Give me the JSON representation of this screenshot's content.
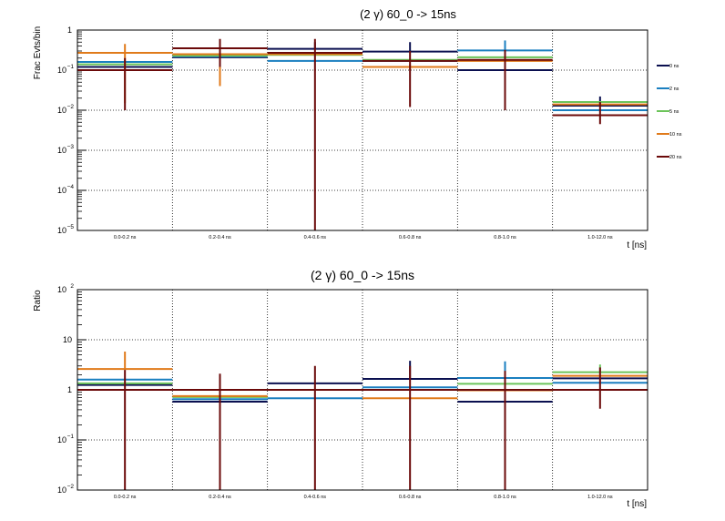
{
  "series_colors": {
    "0 ns": "#0b1050",
    "2 ns": "#1a7fc0",
    "5 ns": "#6cc45a",
    "10 ns": "#e07a1a",
    "20 ns": "#6b0a0a"
  },
  "chart_data": [
    {
      "type": "bar",
      "title": "(2 γ) 60_0 -> 15ns",
      "xlabel": "t [ns]",
      "ylabel": "Frac Evts/bin",
      "yscale": "log",
      "ylim": [
        1e-05,
        1
      ],
      "y_ticks": [
        {
          "value": 1,
          "base": "1",
          "exp": ""
        },
        {
          "value": 0.1,
          "base": "10",
          "exp": "−1"
        },
        {
          "value": 0.01,
          "base": "10",
          "exp": "−2"
        },
        {
          "value": 0.001,
          "base": "10",
          "exp": "−3"
        },
        {
          "value": 0.0001,
          "base": "10",
          "exp": "−4"
        },
        {
          "value": 1e-05,
          "base": "10",
          "exp": "−5"
        }
      ],
      "categories": [
        "0.0-0.2 ns",
        "0.2-0.4 ns",
        "0.4-0.6 ns",
        "0.6-0.8 ns",
        "0.8-1.0 ns",
        "1.0-12.0 ns"
      ],
      "legend": [
        "0 ns",
        "2 ns",
        "5 ns",
        "10 ns",
        "20 ns"
      ],
      "series": [
        {
          "name": "0 ns",
          "values": [
            0.12,
            0.21,
            0.34,
            0.29,
            0.1,
            0.013
          ],
          "err_hi": [
            null,
            null,
            0.5,
            0.5,
            null,
            0.022
          ],
          "err_lo": [
            null,
            null,
            null,
            null,
            null,
            null
          ]
        },
        {
          "name": "2 ns",
          "values": [
            0.16,
            0.22,
            0.17,
            0.17,
            0.31,
            0.01
          ],
          "err_hi": [
            null,
            null,
            null,
            null,
            0.55,
            null
          ],
          "err_lo": [
            null,
            null,
            null,
            null,
            null,
            null
          ]
        },
        {
          "name": "5 ns",
          "values": [
            0.14,
            0.23,
            0.24,
            0.18,
            0.21,
            0.016
          ],
          "err_hi": [
            null,
            null,
            null,
            null,
            null,
            null
          ],
          "err_lo": [
            null,
            null,
            null,
            null,
            null,
            null
          ]
        },
        {
          "name": "10 ns",
          "values": [
            0.27,
            0.25,
            0.25,
            0.12,
            0.17,
            0.014
          ],
          "err_hi": [
            0.45,
            0.28,
            null,
            0.14,
            null,
            null
          ],
          "err_lo": [
            0.015,
            0.04,
            null,
            0.1,
            null,
            null
          ]
        },
        {
          "name": "20 ns",
          "values": [
            0.1,
            0.35,
            0.27,
            0.17,
            0.18,
            0.0075
          ],
          "err_hi": [
            0.2,
            0.6,
            0.6,
            0.3,
            0.32,
            0.016
          ],
          "err_lo": [
            0.01,
            0.12,
            1e-05,
            0.012,
            0.01,
            0.0045
          ]
        }
      ]
    },
    {
      "type": "bar",
      "title": "(2 γ) 60_0 -> 15ns",
      "xlabel": "t [ns]",
      "ylabel": "Ratio",
      "yscale": "log",
      "ylim": [
        0.01,
        100
      ],
      "y_ticks": [
        {
          "value": 100,
          "base": "10",
          "exp": "2"
        },
        {
          "value": 10,
          "base": "10",
          "exp": ""
        },
        {
          "value": 1,
          "base": "1",
          "exp": ""
        },
        {
          "value": 0.1,
          "base": "10",
          "exp": "−1"
        },
        {
          "value": 0.01,
          "base": "10",
          "exp": "−2"
        }
      ],
      "categories": [
        "0.0-0.2 ns",
        "0.2-0.4 ns",
        "0.4-0.6 ns",
        "0.6-0.8 ns",
        "0.8-1.0 ns",
        "1.0-12.0 ns"
      ],
      "series": [
        {
          "name": "0 ns",
          "values": [
            1.25,
            0.58,
            1.35,
            1.65,
            0.58,
            1.7
          ],
          "err_hi": [
            null,
            null,
            null,
            3.8,
            null,
            null
          ],
          "err_lo": [
            null,
            null,
            null,
            null,
            null,
            null
          ]
        },
        {
          "name": "2 ns",
          "values": [
            1.6,
            0.65,
            0.68,
            1.12,
            1.72,
            1.38
          ],
          "err_hi": [
            null,
            null,
            null,
            null,
            3.7,
            null
          ],
          "err_lo": [
            null,
            null,
            null,
            null,
            null,
            null
          ]
        },
        {
          "name": "5 ns",
          "values": [
            1.35,
            0.72,
            1.0,
            1.0,
            1.32,
            2.25
          ],
          "err_hi": [
            null,
            null,
            null,
            null,
            null,
            3.2
          ],
          "err_lo": [
            null,
            null,
            null,
            null,
            null,
            null
          ]
        },
        {
          "name": "10 ns",
          "values": [
            2.6,
            0.75,
            1.0,
            0.68,
            0.98,
            1.9
          ],
          "err_hi": [
            5.8,
            null,
            null,
            null,
            null,
            null
          ],
          "err_lo": [
            null,
            null,
            null,
            null,
            null,
            null
          ]
        },
        {
          "name": "20 ns",
          "values": [
            1.0,
            1.0,
            1.0,
            1.0,
            1.0,
            1.0
          ],
          "err_hi": [
            2.5,
            2.1,
            3.0,
            3.0,
            2.4,
            2.8
          ],
          "err_lo": [
            0.01,
            0.01,
            0.01,
            0.01,
            0.01,
            0.42
          ]
        }
      ]
    }
  ]
}
